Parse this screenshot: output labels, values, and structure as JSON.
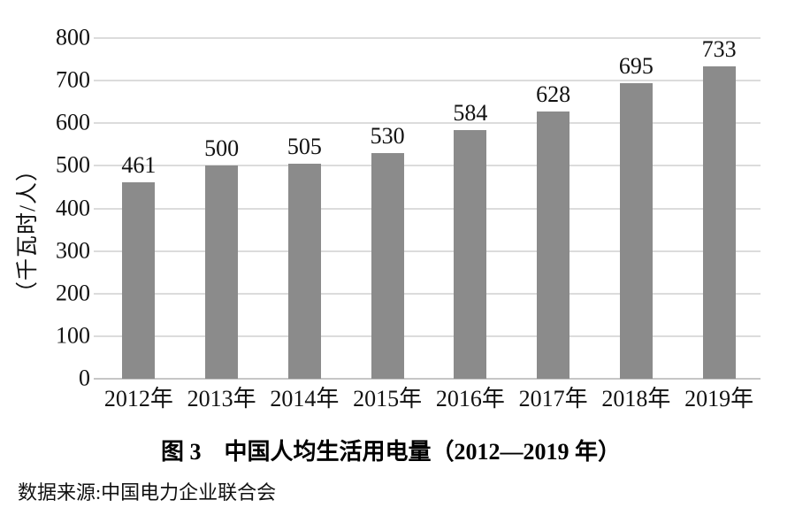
{
  "chart_data": {
    "type": "bar",
    "categories": [
      "2012年",
      "2013年",
      "2014年",
      "2015年",
      "2016年",
      "2017年",
      "2018年",
      "2019年"
    ],
    "values": [
      461,
      500,
      505,
      530,
      584,
      628,
      695,
      733
    ],
    "title": "图 3　中国人均生活用电量（2012—2019 年）",
    "xlabel": "",
    "ylabel": "（千瓦时/人）",
    "ylim": [
      0,
      800
    ],
    "yticks": [
      0,
      100,
      200,
      300,
      400,
      500,
      600,
      700,
      800
    ],
    "grid": true,
    "legend_position": "none",
    "value_labels_shown": true,
    "source": "数据来源:中国电力企业联合会",
    "bar_color": "#8b8b8b",
    "gridline_color": "#dcdcdc",
    "axis_line_color": "#c6c6c6",
    "text_color": "#111111",
    "background_color": "#ffffff"
  }
}
